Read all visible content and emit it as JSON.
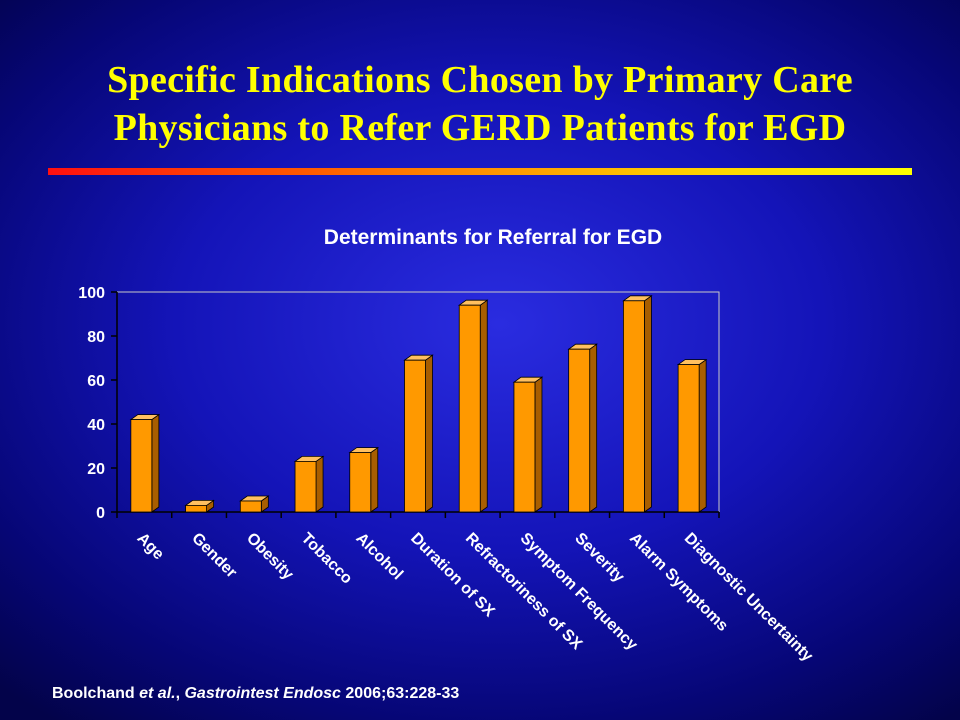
{
  "slide": {
    "title_line1": "Specific Indications Chosen by Primary Care",
    "title_line2": "Physicians to Refer GERD Patients for EGD"
  },
  "citation": {
    "author": "Boolchand",
    "etal": " et al.",
    "sep": ", ",
    "journal": "Gastrointest Endosc",
    "ref": " 2006;63:228-33"
  },
  "colors": {
    "bar_front": "#ff9900",
    "bar_side": "#a85e00",
    "bar_top": "#ffc060",
    "title": "#ffff00"
  },
  "chart_data": {
    "type": "bar",
    "title": "Determinants for Referral for EGD",
    "xlabel": "",
    "ylabel": "",
    "categories": [
      "Age",
      "Gender",
      "Obesity",
      "Tobacco",
      "Alcohol",
      "Duration of SX",
      "Refractoriness of SX",
      "Symptom Frequency",
      "Severity",
      "Alarm Symptoms",
      "Diagnostic Uncertainty"
    ],
    "values": [
      42,
      3,
      5,
      23,
      27,
      69,
      94,
      59,
      74,
      96,
      67
    ],
    "ylim": [
      0,
      100
    ],
    "yticks": [
      0,
      20,
      40,
      60,
      80,
      100
    ],
    "ytick_labels": [
      "0",
      "20",
      "40",
      "60",
      "80",
      "100"
    ],
    "grid": false,
    "legend": "none",
    "style": "3d"
  }
}
